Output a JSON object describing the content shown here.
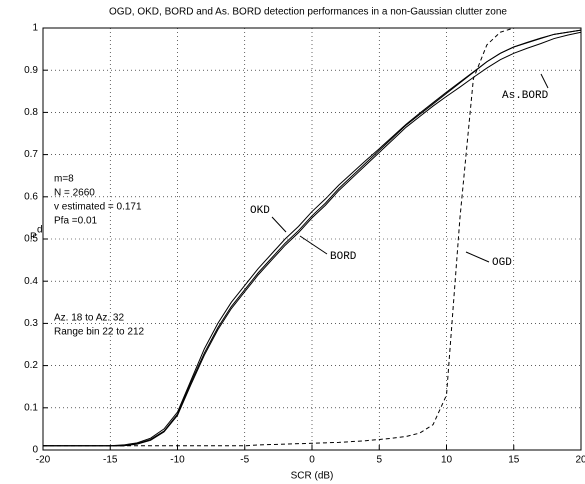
{
  "chart_data": {
    "type": "line",
    "title": "OGD, OKD, BORD and As. BORD detection performances in a non-Gaussian clutter zone",
    "xlabel": "SCR (dB)",
    "ylabel": "P",
    "ylabel_sub": "d",
    "x": [
      -20,
      -19,
      -18,
      -17,
      -16,
      -15,
      -14,
      -13,
      -12,
      -11,
      -10,
      -9,
      -8,
      -7,
      -6,
      -5,
      -4,
      -3,
      -2,
      -1,
      0,
      1,
      2,
      3,
      4,
      5,
      6,
      7,
      8,
      9,
      10,
      11,
      12,
      13,
      14,
      15,
      16,
      17,
      18,
      19,
      20
    ],
    "series": [
      {
        "name": "OKD",
        "color": "#000000",
        "style": "solid",
        "values": [
          0.01,
          0.01,
          0.01,
          0.01,
          0.01,
          0.01,
          0.012,
          0.017,
          0.028,
          0.05,
          0.09,
          0.165,
          0.24,
          0.3,
          0.35,
          0.39,
          0.43,
          0.465,
          0.5,
          0.53,
          0.565,
          0.595,
          0.628,
          0.657,
          0.686,
          0.714,
          0.743,
          0.772,
          0.798,
          0.823,
          0.848,
          0.872,
          0.896,
          0.92,
          0.94,
          0.955,
          0.966,
          0.976,
          0.985,
          0.99,
          0.995
        ]
      },
      {
        "name": "BORD",
        "color": "#000000",
        "style": "solid",
        "values": [
          0.01,
          0.01,
          0.01,
          0.01,
          0.01,
          0.01,
          0.01,
          0.015,
          0.025,
          0.045,
          0.085,
          0.16,
          0.23,
          0.29,
          0.34,
          0.38,
          0.42,
          0.455,
          0.49,
          0.52,
          0.555,
          0.585,
          0.62,
          0.65,
          0.68,
          0.71,
          0.74,
          0.77,
          0.795,
          0.82,
          0.845,
          0.87,
          0.895,
          0.92,
          0.94,
          0.955,
          0.965,
          0.975,
          0.985,
          0.99,
          0.995
        ]
      },
      {
        "name": "As.BORD",
        "color": "#000000",
        "style": "solid",
        "values": [
          0.01,
          0.01,
          0.01,
          0.01,
          0.01,
          0.01,
          0.01,
          0.014,
          0.023,
          0.043,
          0.082,
          0.155,
          0.225,
          0.285,
          0.335,
          0.375,
          0.415,
          0.45,
          0.485,
          0.515,
          0.55,
          0.58,
          0.615,
          0.645,
          0.675,
          0.705,
          0.735,
          0.765,
          0.79,
          0.815,
          0.838,
          0.86,
          0.883,
          0.905,
          0.925,
          0.94,
          0.952,
          0.963,
          0.975,
          0.983,
          0.99
        ]
      },
      {
        "name": "OGD",
        "color": "#000000",
        "style": "dashed",
        "values": [
          0.01,
          0.01,
          0.01,
          0.01,
          0.01,
          0.01,
          0.01,
          0.01,
          0.01,
          0.01,
          0.01,
          0.01,
          0.01,
          0.01,
          0.01,
          0.01,
          0.012,
          0.013,
          0.014,
          0.015,
          0.016,
          0.017,
          0.018,
          0.02,
          0.022,
          0.025,
          0.028,
          0.032,
          0.04,
          0.06,
          0.13,
          0.55,
          0.88,
          0.96,
          0.99,
          1,
          1,
          1,
          1,
          1,
          1
        ]
      }
    ],
    "annotations": [
      "m=8",
      "N = 2660",
      "v estimated = 0.171",
      "Pfa =0.01",
      "Az. 18 to Az. 32",
      "Range bin 22 to 212"
    ],
    "xlim": [
      -20,
      20
    ],
    "ylim": [
      0,
      1
    ],
    "xticks": [
      -20,
      -15,
      -10,
      -5,
      0,
      5,
      10,
      15,
      20
    ],
    "yticks": [
      0,
      0.1,
      0.2,
      0.3,
      0.4,
      0.5,
      0.6,
      0.7,
      0.8,
      0.9,
      1
    ],
    "grid": true
  }
}
